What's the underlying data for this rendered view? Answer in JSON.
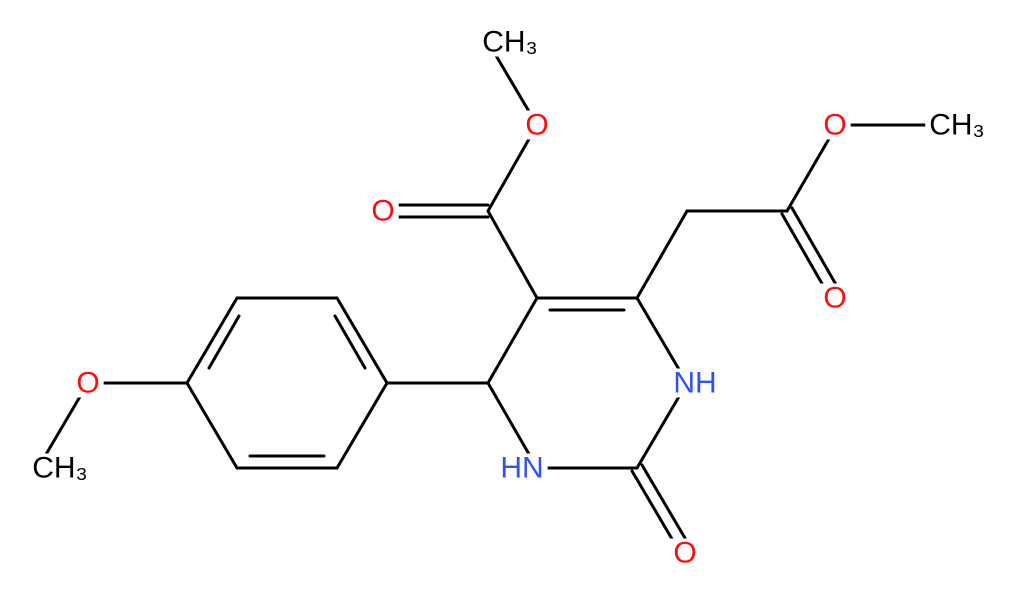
{
  "atoms": [
    {
      "label": "CH₃"
    },
    {
      "label": "O"
    },
    {
      "label": "O"
    },
    {
      "label": "O"
    },
    {
      "label": "CH₃"
    },
    {
      "label": "O"
    },
    {
      "label": "NH"
    },
    {
      "label": "HN"
    },
    {
      "label": "O"
    },
    {
      "label": "O"
    },
    {
      "label": "CH₃"
    }
  ]
}
